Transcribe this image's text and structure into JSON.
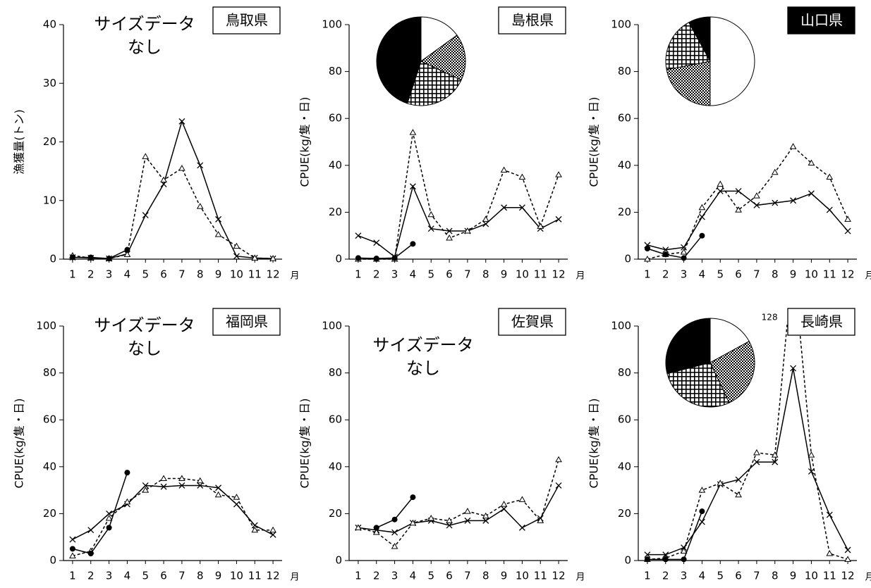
{
  "chart_data": [
    {
      "type": "line",
      "title": "鳥取県",
      "ylabel": "漁獲量(トン)",
      "xlabel": "月",
      "annotation": [
        "サイズデータ",
        "なし"
      ],
      "x": [
        1,
        2,
        3,
        4,
        5,
        6,
        7,
        8,
        9,
        10,
        11,
        12
      ],
      "xlim": [
        0.5,
        12.5
      ],
      "xticks": [
        1,
        2,
        3,
        4,
        5,
        6,
        7,
        8,
        9,
        10,
        11,
        12
      ],
      "ylim": [
        0,
        40
      ],
      "yticks": [
        0,
        10,
        20,
        30,
        40
      ],
      "series": [
        {
          "color": "#000000",
          "line": "solid",
          "marker": "x",
          "values": [
            0.3,
            0.2,
            0.1,
            0.9,
            7.5,
            12.8,
            23.5,
            16,
            6.8,
            0.5,
            0.2,
            0.1
          ]
        },
        {
          "color": "#000000",
          "line": "dashed",
          "marker": "triangle",
          "values": [
            0.6,
            0.2,
            0.1,
            0.8,
            17.5,
            13.5,
            15.5,
            9,
            4.2,
            2.2,
            0.2,
            0.1
          ]
        },
        {
          "color": "#000000",
          "line": "solid",
          "marker": "circle",
          "values": [
            0.3,
            0.3,
            0.1,
            1.6,
            null,
            null,
            null,
            null,
            null,
            null,
            null,
            null
          ]
        }
      ]
    },
    {
      "type": "line",
      "title": "島根県",
      "ylabel": "CPUE(kg/隻・日)",
      "xlabel": "月",
      "x": [
        1,
        2,
        3,
        4,
        5,
        6,
        7,
        8,
        9,
        10,
        11,
        12
      ],
      "xlim": [
        0.5,
        12.5
      ],
      "xticks": [
        1,
        2,
        3,
        4,
        5,
        6,
        7,
        8,
        9,
        10,
        11,
        12
      ],
      "ylim": [
        0,
        100
      ],
      "yticks": [
        0,
        20,
        40,
        60,
        80,
        100
      ],
      "series": [
        {
          "color": "#000000",
          "line": "solid",
          "marker": "x",
          "values": [
            10,
            7,
            1,
            31,
            13,
            12,
            12,
            15,
            22,
            22,
            13,
            17
          ]
        },
        {
          "color": "#000000",
          "line": "dashed",
          "marker": "triangle",
          "values": [
            0,
            0,
            0,
            54,
            19,
            9,
            12,
            17,
            38,
            35,
            14,
            36
          ]
        },
        {
          "color": "#000000",
          "line": "solid",
          "marker": "circle",
          "values": [
            0.5,
            0.3,
            0.5,
            6.5,
            null,
            null,
            null,
            null,
            null,
            null,
            null,
            null
          ]
        }
      ],
      "pie": {
        "values": [
          15,
          17,
          23,
          45
        ],
        "fills": [
          "white",
          "dots",
          "grid",
          "black"
        ]
      }
    },
    {
      "type": "line",
      "title": "山口県",
      "title_style": "inverse",
      "ylabel": "CPUE(kg/隻・日)",
      "xlabel": "月",
      "x": [
        1,
        2,
        3,
        4,
        5,
        6,
        7,
        8,
        9,
        10,
        11,
        12
      ],
      "xlim": [
        0.5,
        12.5
      ],
      "xticks": [
        1,
        2,
        3,
        4,
        5,
        6,
        7,
        8,
        9,
        10,
        11,
        12
      ],
      "ylim": [
        0,
        100
      ],
      "yticks": [
        0,
        20,
        40,
        60,
        80,
        100
      ],
      "series": [
        {
          "color": "#000000",
          "line": "solid",
          "marker": "x",
          "values": [
            6,
            4,
            5,
            18,
            29,
            29,
            23,
            24,
            25,
            28,
            21,
            12
          ]
        },
        {
          "color": "#000000",
          "line": "dashed",
          "marker": "triangle",
          "values": [
            0,
            2,
            3,
            22,
            32,
            21,
            27,
            37,
            48,
            41,
            35,
            17
          ]
        },
        {
          "color": "#000000",
          "line": "solid",
          "marker": "circle",
          "values": [
            4.5,
            2,
            0.5,
            10,
            null,
            null,
            null,
            null,
            null,
            null,
            null,
            null
          ]
        }
      ],
      "pie": {
        "values": [
          50,
          22,
          20,
          8
        ],
        "fills": [
          "white",
          "dots",
          "grid",
          "black"
        ]
      }
    },
    {
      "type": "line",
      "title": "福岡県",
      "ylabel": "CPUE(kg/隻・日)",
      "xlabel": "月",
      "annotation": [
        "サイズデータ",
        "なし"
      ],
      "x": [
        1,
        2,
        3,
        4,
        5,
        6,
        7,
        8,
        9,
        10,
        11,
        12
      ],
      "xlim": [
        0.5,
        12.5
      ],
      "xticks": [
        1,
        2,
        3,
        4,
        5,
        6,
        7,
        8,
        9,
        10,
        11,
        12
      ],
      "ylim": [
        0,
        100
      ],
      "yticks": [
        0,
        20,
        40,
        60,
        80,
        100
      ],
      "series": [
        {
          "color": "#000000",
          "line": "solid",
          "marker": "x",
          "values": [
            9,
            13,
            20,
            24,
            32,
            31.5,
            32,
            32,
            31,
            24,
            15,
            11
          ]
        },
        {
          "color": "#000000",
          "line": "dashed",
          "marker": "triangle",
          "values": [
            2,
            4,
            18,
            25,
            30,
            35,
            35,
            34,
            28,
            27,
            13,
            13
          ]
        },
        {
          "color": "#000000",
          "line": "solid",
          "marker": "circle",
          "values": [
            5,
            3,
            14,
            37.5,
            null,
            null,
            null,
            null,
            null,
            null,
            null,
            null
          ]
        }
      ]
    },
    {
      "type": "line",
      "title": "佐賀県",
      "ylabel": "CPUE(kg/隻・日)",
      "xlabel": "月",
      "annotation": [
        "サイズデータ",
        "なし"
      ],
      "x": [
        1,
        2,
        3,
        4,
        5,
        6,
        7,
        8,
        9,
        10,
        11,
        12
      ],
      "xlim": [
        0.5,
        12.5
      ],
      "xticks": [
        1,
        2,
        3,
        4,
        5,
        6,
        7,
        8,
        9,
        10,
        11,
        12
      ],
      "ylim": [
        0,
        100
      ],
      "yticks": [
        0,
        20,
        40,
        60,
        80,
        100
      ],
      "series": [
        {
          "color": "#000000",
          "line": "solid",
          "marker": "x",
          "values": [
            14,
            13,
            12,
            16,
            17,
            15,
            17,
            17,
            22,
            14,
            18,
            32
          ]
        },
        {
          "color": "#000000",
          "line": "dashed",
          "marker": "triangle",
          "values": [
            14,
            12,
            6,
            16,
            18,
            17,
            21,
            19,
            24,
            26,
            17,
            43
          ]
        },
        {
          "color": "#000000",
          "line": "solid",
          "marker": "circle",
          "values": [
            null,
            14,
            17.5,
            27,
            null,
            null,
            null,
            null,
            null,
            null,
            null,
            null
          ]
        }
      ]
    },
    {
      "type": "line",
      "title": "長崎県",
      "ylabel": "CPUE(kg/隻・日)",
      "xlabel": "月",
      "x": [
        1,
        2,
        3,
        4,
        5,
        6,
        7,
        8,
        9,
        10,
        11,
        12
      ],
      "xlim": [
        0.5,
        12.5
      ],
      "xticks": [
        1,
        2,
        3,
        4,
        5,
        6,
        7,
        8,
        9,
        10,
        11,
        12
      ],
      "ylim": [
        0,
        100
      ],
      "yticks": [
        0,
        20,
        40,
        60,
        80,
        100
      ],
      "series": [
        {
          "color": "#000000",
          "line": "solid",
          "marker": "x",
          "values": [
            2.5,
            2.5,
            5.5,
            16.5,
            32.5,
            34.5,
            42,
            42,
            82,
            38,
            19.5,
            4.5
          ]
        },
        {
          "color": "#000000",
          "line": "dashed",
          "marker": "triangle",
          "values": [
            0.5,
            1,
            4,
            30,
            33,
            28,
            46,
            45,
            128,
            45,
            3,
            0.5
          ]
        },
        {
          "color": "#000000",
          "line": "solid",
          "marker": "circle",
          "values": [
            0.5,
            0.5,
            0.5,
            21,
            null,
            null,
            null,
            null,
            null,
            null,
            null,
            null
          ]
        }
      ],
      "pie": {
        "values": [
          17,
          26,
          28,
          29
        ],
        "fills": [
          "white",
          "dots",
          "grid",
          "black"
        ]
      }
    }
  ]
}
